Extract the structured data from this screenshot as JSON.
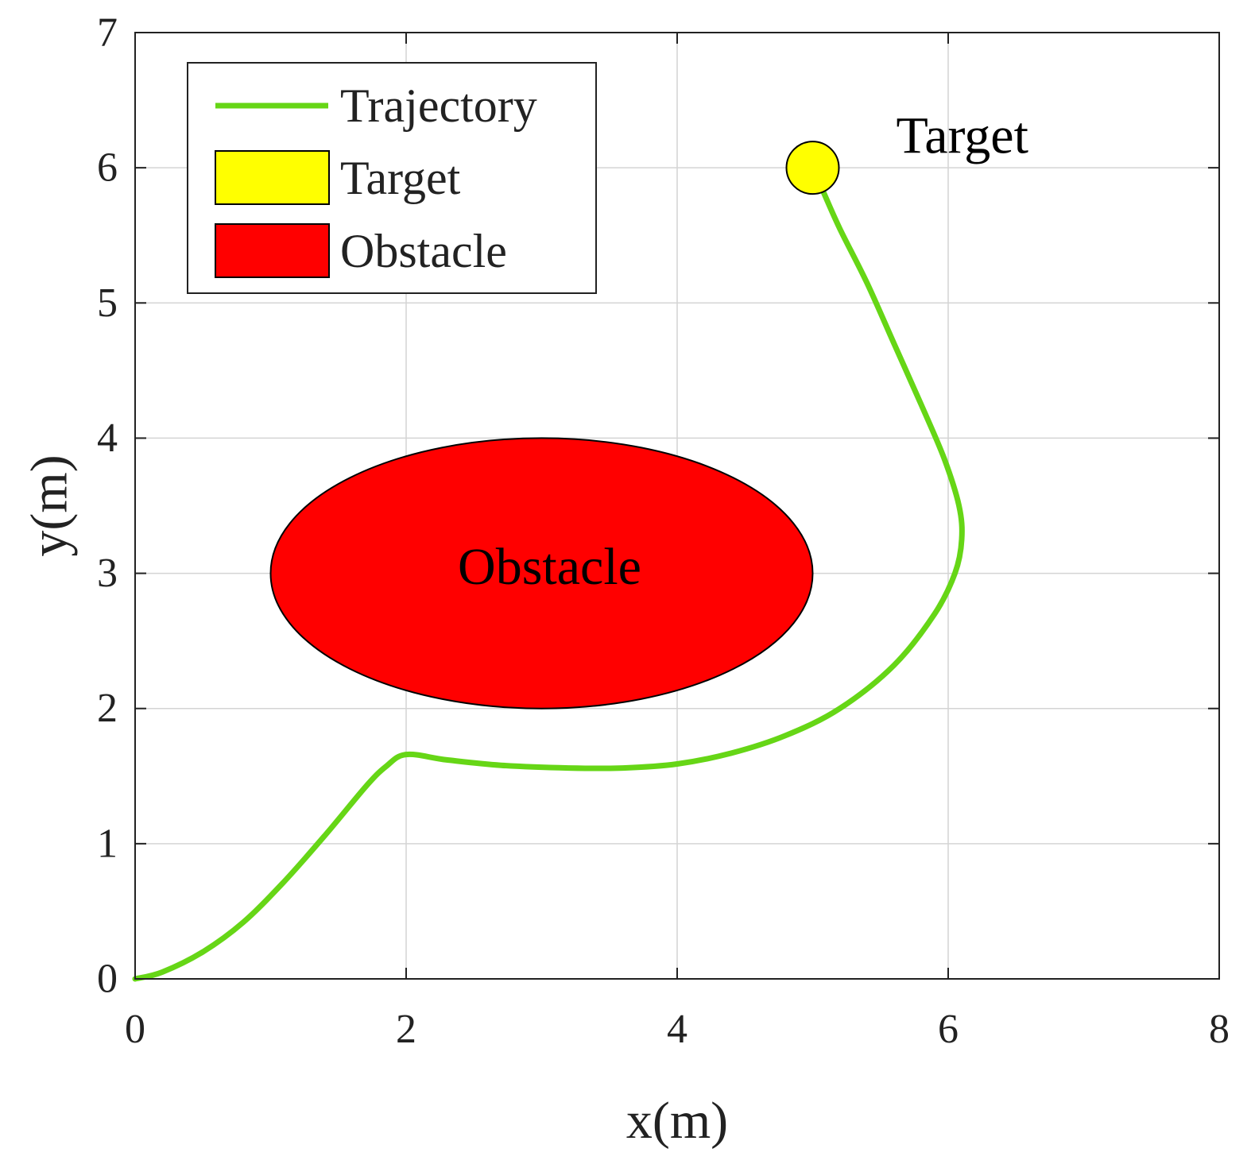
{
  "chart_data": {
    "type": "line",
    "xlabel": "x(m)",
    "ylabel": "y(m)",
    "xlim": [
      0,
      8
    ],
    "ylim": [
      0,
      7
    ],
    "xticks": [
      "0",
      "2",
      "4",
      "6",
      "8"
    ],
    "yticks": [
      "0",
      "1",
      "2",
      "3",
      "4",
      "5",
      "6",
      "7"
    ],
    "grid": true,
    "legend_position": "top-left",
    "legend": [
      {
        "label": "Trajectory",
        "kind": "line",
        "color": "#66d616"
      },
      {
        "label": "Target",
        "kind": "patch",
        "color": "#ffff00"
      },
      {
        "label": "Obstacle",
        "kind": "patch",
        "color": "#ff0000"
      }
    ],
    "series": [
      {
        "name": "Trajectory",
        "color": "#66d616",
        "x": [
          0,
          0.2,
          0.5,
          0.8,
          1.1,
          1.4,
          1.7,
          1.85,
          2.0,
          2.3,
          2.7,
          3.2,
          3.6,
          4.0,
          4.4,
          4.8,
          5.2,
          5.6,
          5.9,
          6.05,
          6.1,
          6.08,
          5.97,
          5.8,
          5.6,
          5.4,
          5.2,
          5.08
        ],
        "y": [
          0,
          0.05,
          0.2,
          0.42,
          0.72,
          1.06,
          1.42,
          1.57,
          1.66,
          1.62,
          1.58,
          1.56,
          1.56,
          1.59,
          1.67,
          1.8,
          2.0,
          2.32,
          2.7,
          3.0,
          3.25,
          3.5,
          3.85,
          4.25,
          4.7,
          5.15,
          5.55,
          5.82
        ]
      }
    ],
    "obstacle": {
      "label": "Obstacle",
      "shape": "ellipse",
      "center": [
        3,
        3
      ],
      "semi_axes": [
        2,
        1
      ],
      "color": "#ff0000"
    },
    "target": {
      "label": "Target",
      "position": [
        5,
        6
      ],
      "color": "#ffff00"
    }
  }
}
